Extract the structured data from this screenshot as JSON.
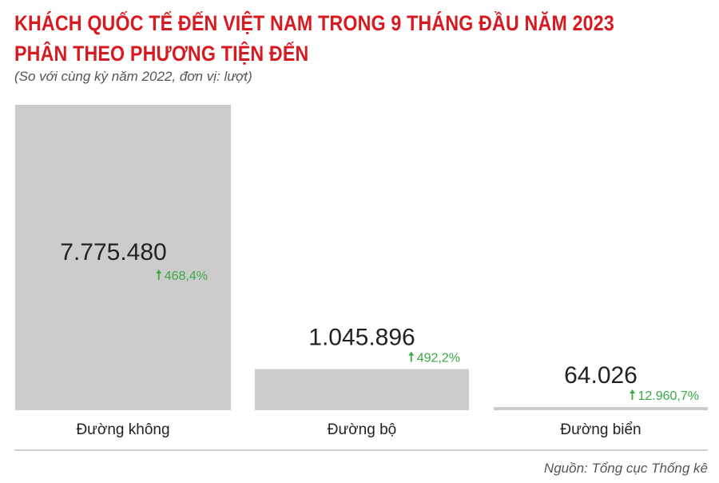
{
  "title_line1": "KHÁCH QUỐC TẾ ĐẾN VIỆT NAM TRONG 9 THÁNG ĐẦU NĂM 2023",
  "title_line2": "PHÂN THEO PHƯƠNG TIỆN ĐẾN",
  "subtitle": "(So với cùng kỳ năm 2022, đơn vị: lượt)",
  "source": "Nguồn: Tổng cục Thống kê",
  "colors": {
    "title": "#d71920",
    "bar": "#cccccc",
    "value_text": "#222222",
    "change_text": "#3aa843",
    "axis": "#d0d0d0"
  },
  "chart_data": {
    "type": "bar",
    "categories": [
      "Đường không",
      "Đường bộ",
      "Đường biển"
    ],
    "values": [
      7775480,
      1045896,
      64026
    ],
    "value_labels": [
      "7.775.480",
      "1.045.896",
      "64.026"
    ],
    "change_labels": [
      "468,4%",
      "492,2%",
      "12.960,7%"
    ],
    "change_icon": "arrow-up-icon",
    "ylim": [
      0,
      7775480
    ],
    "grid": false,
    "legend": "none"
  }
}
